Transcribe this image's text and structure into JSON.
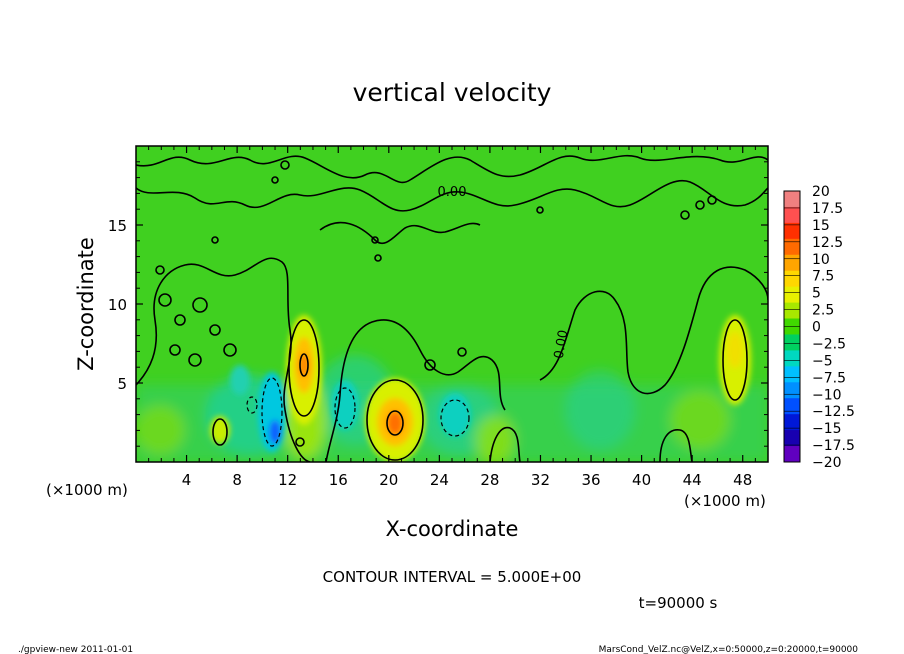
{
  "chart_data": {
    "type": "heatmap",
    "title": "vertical velocity",
    "xlabel": "X-coordinate",
    "ylabel": "Z-coordinate",
    "x_unit_left": "(×1000 m)",
    "x_unit_right": "(×1000 m)",
    "xlim": [
      0,
      50
    ],
    "ylim": [
      0,
      20
    ],
    "xticks": [
      4,
      8,
      12,
      16,
      20,
      24,
      28,
      32,
      36,
      40,
      44,
      48
    ],
    "yticks": [
      5,
      10,
      15
    ],
    "contour_interval_text": "CONTOUR INTERVAL = 5.000E+00",
    "time_text": "t=90000 s",
    "contour_labels": [
      "0.00",
      "0.00"
    ],
    "colorbar": {
      "labels": [
        "20",
        "17.5",
        "15",
        "12.5",
        "10",
        "7.5",
        "5",
        "2.5",
        "0",
        "-2.5",
        "-5",
        "-7.5",
        "-10",
        "-12.5",
        "-15",
        "-17.5",
        "-20"
      ],
      "colors": [
        "#f08080",
        "#ff5050",
        "#ff3000",
        "#ff6a00",
        "#ffa500",
        "#ffd700",
        "#e8f000",
        "#a8e800",
        "#40d800",
        "#00d060",
        "#00d8c0",
        "#00c0ff",
        "#0090ff",
        "#0050ff",
        "#0018d8",
        "#1800b0",
        "#6000c0"
      ]
    },
    "features": [
      {
        "kind": "updraft",
        "x": 13.2,
        "z": 6.5,
        "peak": 10
      },
      {
        "kind": "updraft",
        "x": 20.5,
        "z": 2.5,
        "peak": 12.5
      },
      {
        "kind": "updraft",
        "x": 47.5,
        "z": 7.5,
        "peak": 7.5
      },
      {
        "kind": "updraft",
        "x": 6.5,
        "z": 2.2,
        "peak": 5
      },
      {
        "kind": "downdraft",
        "x": 11.0,
        "z": 2.0,
        "peak": -10
      },
      {
        "kind": "downdraft",
        "x": 17.5,
        "z": 3.5,
        "peak": -5
      },
      {
        "kind": "downdraft",
        "x": 25.0,
        "z": 3.0,
        "peak": -5
      }
    ]
  },
  "footer": {
    "left": "./gpview-new   2011-01-01",
    "right": "MarsCond_VelZ.nc@VelZ,x=0:50000,z=0:20000,t=90000"
  },
  "labels": {
    "neg_sign": "−"
  }
}
